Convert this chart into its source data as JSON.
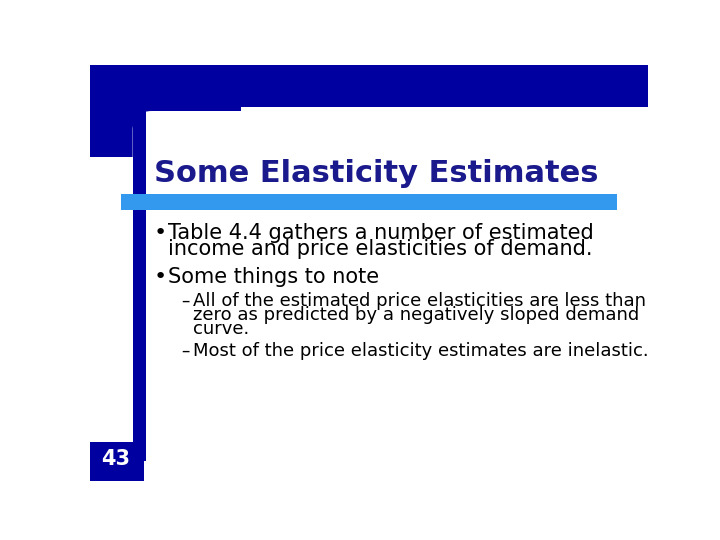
{
  "title": "Some Elasticity Estimates",
  "title_color": "#1a1a8c",
  "title_fontsize": 22,
  "title_bold": true,
  "slide_bg": "#FFFFFF",
  "dark_blue": "#0000A0",
  "blue_bar_color": "#3399EE",
  "bullet1_line1": "Table 4.4 gathers a number of estimated",
  "bullet1_line2": "income and price elasticities of demand.",
  "bullet2": "Some things to note",
  "sub1_line1": "All of the estimated price elasticities are less than",
  "sub1_line2": "zero as predicted by a negatively sloped demand",
  "sub1_line3": "curve.",
  "sub2": "Most of the price elasticity estimates are inelastic.",
  "page_number": "43",
  "page_color": "#FFFFFF",
  "text_color": "#000000",
  "bullet_fontsize": 15,
  "sub_fontsize": 13,
  "left_bar_color": "#0000A0"
}
